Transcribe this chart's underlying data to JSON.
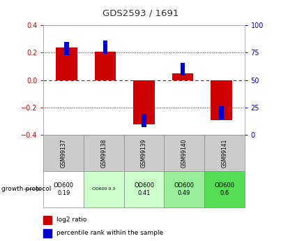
{
  "title": "GDS2593 / 1691",
  "samples": [
    "GSM99137",
    "GSM99138",
    "GSM99139",
    "GSM99140",
    "GSM99141"
  ],
  "log2_ratio": [
    0.24,
    0.21,
    -0.32,
    0.05,
    -0.29
  ],
  "percentile_rank": [
    79,
    80,
    13,
    60,
    20
  ],
  "ylim_left": [
    -0.4,
    0.4
  ],
  "ylim_right": [
    0,
    100
  ],
  "yticks_left": [
    -0.4,
    -0.2,
    0.0,
    0.2,
    0.4
  ],
  "yticks_right": [
    0,
    25,
    50,
    75,
    100
  ],
  "bar_color_red": "#cc0000",
  "bar_color_blue": "#0000cc",
  "title_color": "#333333",
  "left_tick_color": "#cc0000",
  "right_tick_color": "#0000bb",
  "hline_color_dashed_red": "#cc0000",
  "hline_color_dotted": "#333333",
  "growth_protocol_label": "growth protocol",
  "cell_labels": [
    "OD600\n0.19",
    "OD600 0.3",
    "OD600\n0.41",
    "OD600\n0.49",
    "OD600\n0.6"
  ],
  "cell_bg_colors": [
    "#ffffff",
    "#ccffcc",
    "#ccffcc",
    "#99ee99",
    "#55dd55"
  ],
  "sample_bg_color": "#cccccc",
  "legend_red_label": "log2 ratio",
  "legend_blue_label": "percentile rank within the sample",
  "red_bar_width": 0.55,
  "blue_bar_width": 0.12
}
